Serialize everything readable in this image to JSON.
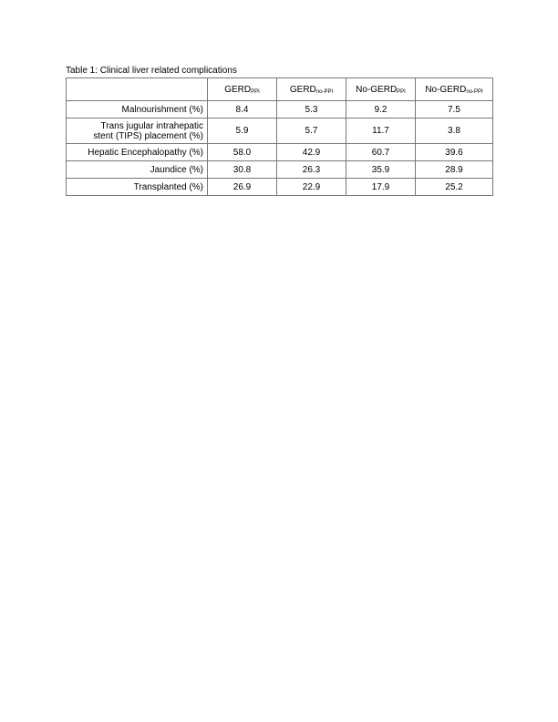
{
  "caption": "Table 1: Clinical liver related complications",
  "columns": [
    {
      "base": "GERD",
      "sub": "PPI"
    },
    {
      "base": "GERD",
      "sub": "no-PPI"
    },
    {
      "base": "No-GERD",
      "sub": "PPI"
    },
    {
      "base": "No-GERD",
      "sub": "no-PPI"
    }
  ],
  "rows": [
    {
      "label1": "Malnourishment (%)",
      "label2": "",
      "values": [
        "8.4",
        "5.3",
        "9.2",
        "7.5"
      ]
    },
    {
      "label1": "Trans jugular intrahepatic",
      "label2": "stent (TIPS) placement (%)",
      "values": [
        "5.9",
        "5.7",
        "11.7",
        "3.8"
      ]
    },
    {
      "label1": "Hepatic Encephalopathy (%)",
      "label2": "",
      "values": [
        "58.0",
        "42.9",
        "60.7",
        "39.6"
      ]
    },
    {
      "label1": "Jaundice (%)",
      "label2": "",
      "values": [
        "30.8",
        "26.3",
        "35.9",
        "28.9"
      ]
    },
    {
      "label1": "Transplanted (%)",
      "label2": "",
      "values": [
        "26.9",
        "22.9",
        "17.9",
        "25.2"
      ]
    }
  ]
}
